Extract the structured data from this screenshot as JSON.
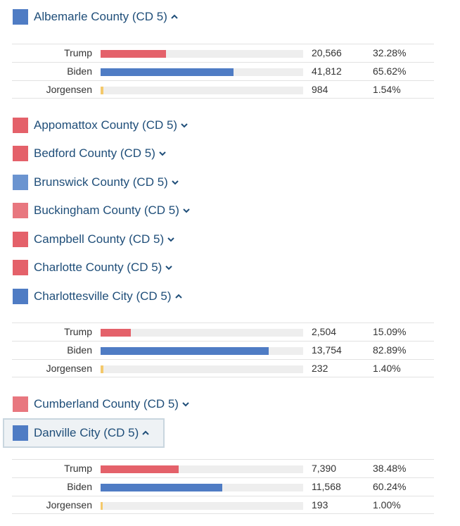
{
  "colors": {
    "trump": "#e4616a",
    "biden": "#4f7cc4",
    "jorgensen": "#f4c96b",
    "rep_strong": "#e4616a",
    "rep_light": "#e8777f",
    "dem_strong": "#4f7cc4",
    "dem_light": "#6b94d0"
  },
  "counties": [
    {
      "name": "Albemarle County (CD 5)",
      "color": "#4f7cc4",
      "expanded": true,
      "results": [
        {
          "candidate": "Trump",
          "votes": "20,566",
          "pct": "32.28%",
          "share": 0.3228
        },
        {
          "candidate": "Biden",
          "votes": "41,812",
          "pct": "65.62%",
          "share": 0.6562
        },
        {
          "candidate": "Jorgensen",
          "votes": "984",
          "pct": "1.54%",
          "share": 0.0154
        }
      ]
    },
    {
      "name": "Appomattox County (CD 5)",
      "color": "#e4616a",
      "expanded": false
    },
    {
      "name": "Bedford County (CD 5)",
      "color": "#e4616a",
      "expanded": false
    },
    {
      "name": "Brunswick County (CD 5)",
      "color": "#6b94d0",
      "expanded": false
    },
    {
      "name": "Buckingham County (CD 5)",
      "color": "#e8777f",
      "expanded": false
    },
    {
      "name": "Campbell County (CD 5)",
      "color": "#e4616a",
      "expanded": false
    },
    {
      "name": "Charlotte County (CD 5)",
      "color": "#e4616a",
      "expanded": false
    },
    {
      "name": "Charlottesville City (CD 5)",
      "color": "#4f7cc4",
      "expanded": true,
      "results": [
        {
          "candidate": "Trump",
          "votes": "2,504",
          "pct": "15.09%",
          "share": 0.1509
        },
        {
          "candidate": "Biden",
          "votes": "13,754",
          "pct": "82.89%",
          "share": 0.8289
        },
        {
          "candidate": "Jorgensen",
          "votes": "232",
          "pct": "1.40%",
          "share": 0.014
        }
      ]
    },
    {
      "name": "Cumberland County (CD 5)",
      "color": "#e8777f",
      "expanded": false
    },
    {
      "name": "Danville City (CD 5)",
      "color": "#4f7cc4",
      "expanded": true,
      "focused": true,
      "results": [
        {
          "candidate": "Trump",
          "votes": "7,390",
          "pct": "38.48%",
          "share": 0.3848
        },
        {
          "candidate": "Biden",
          "votes": "11,568",
          "pct": "60.24%",
          "share": 0.6024
        },
        {
          "candidate": "Jorgensen",
          "votes": "193",
          "pct": "1.00%",
          "share": 0.01
        }
      ]
    }
  ]
}
